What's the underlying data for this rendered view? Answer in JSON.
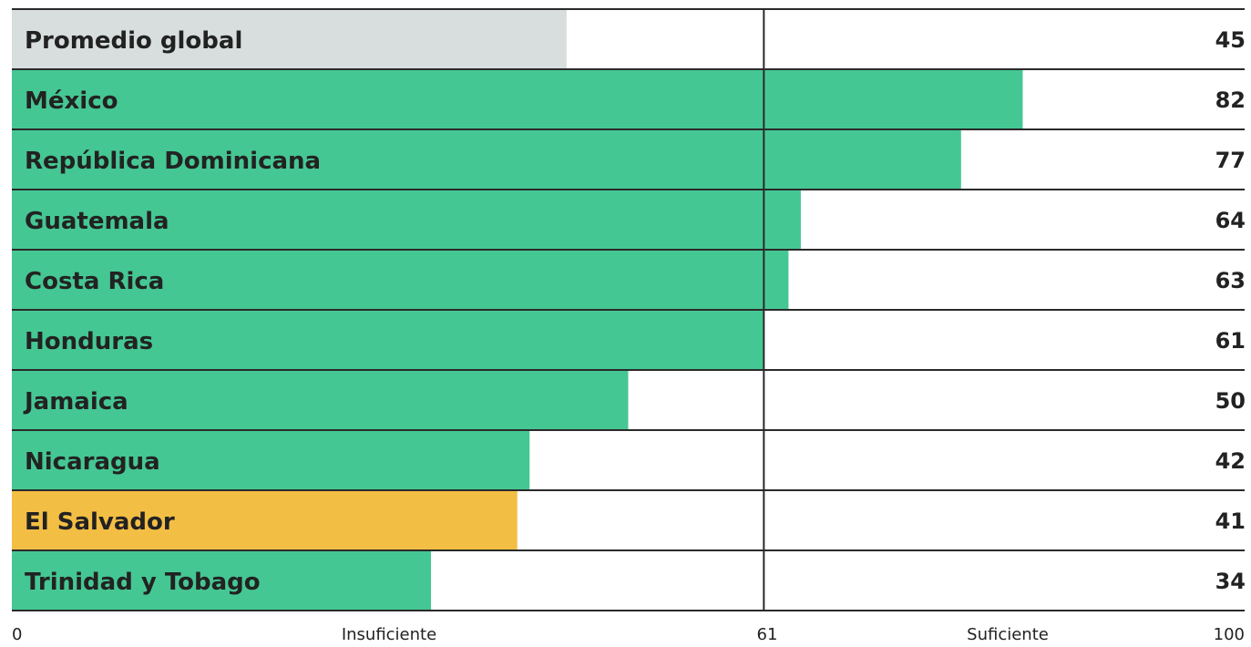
{
  "chart_data": {
    "type": "bar",
    "orientation": "horizontal",
    "categories": [
      "Promedio global",
      "México",
      "República Dominicana",
      "Guatemala",
      "Costa Rica",
      "Honduras",
      "Jamaica",
      "Nicaragua",
      "El Salvador",
      "Trinidad y Tobago"
    ],
    "values": [
      45,
      82,
      77,
      64,
      63,
      61,
      50,
      42,
      41,
      34
    ],
    "bar_colors": [
      "#d7dedd",
      "#45c793",
      "#45c793",
      "#45c793",
      "#45c793",
      "#45c793",
      "#45c793",
      "#45c793",
      "#f3be44",
      "#45c793"
    ],
    "xlim": [
      0,
      100
    ],
    "threshold": 61,
    "axis_labels": {
      "min": "0",
      "below": "Insuficiente",
      "threshold": "61",
      "above": "Suficiente",
      "max": "100"
    },
    "grid": false,
    "legend": "none"
  }
}
